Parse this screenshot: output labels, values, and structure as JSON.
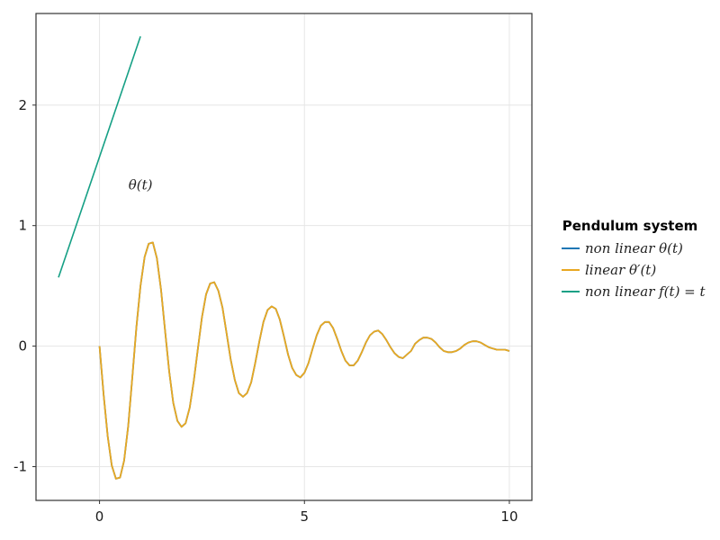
{
  "chart_data": {
    "type": "line",
    "xlim": [
      -1.55,
      10.55
    ],
    "ylim": [
      -1.28,
      2.76
    ],
    "xticks": [
      0,
      5,
      10
    ],
    "yticks": [
      -1,
      0,
      1,
      2
    ],
    "xtick_labels": [
      "0",
      "5",
      "10"
    ],
    "ytick_labels": [
      "-1",
      "0",
      "1",
      "2"
    ],
    "grid": true,
    "annotation": {
      "text": "θ(t)",
      "x": 1.0,
      "y": 1.3
    },
    "legend": {
      "title": "Pendulum system",
      "placement": "right"
    },
    "series": [
      {
        "name": "non linear θ(t)",
        "color": "#1f77b4",
        "x": [
          0,
          0.1,
          0.2,
          0.3,
          0.4,
          0.5,
          0.6,
          0.7,
          0.8,
          0.9,
          1.0,
          1.1,
          1.2,
          1.3,
          1.4,
          1.5,
          1.6,
          1.7,
          1.8,
          1.9,
          2.0,
          2.1,
          2.2,
          2.3,
          2.4,
          2.5,
          2.6,
          2.7,
          2.8,
          2.9,
          3.0,
          3.1,
          3.2,
          3.3,
          3.4,
          3.5,
          3.6,
          3.7,
          3.8,
          3.9,
          4.0,
          4.1,
          4.2,
          4.3,
          4.4,
          4.5,
          4.6,
          4.7,
          4.8,
          4.9,
          5.0,
          5.1,
          5.2,
          5.3,
          5.4,
          5.5,
          5.6,
          5.7,
          5.8,
          5.9,
          6.0,
          6.1,
          6.2,
          6.3,
          6.4,
          6.5,
          6.6,
          6.7,
          6.8,
          6.9,
          7.0,
          7.1,
          7.2,
          7.3,
          7.4,
          7.5,
          7.6,
          7.7,
          7.8,
          7.9,
          8.0,
          8.1,
          8.2,
          8.3,
          8.4,
          8.5,
          8.6,
          8.7,
          8.8,
          8.9,
          9.0,
          9.1,
          9.2,
          9.3,
          9.4,
          9.5,
          9.6,
          9.7,
          9.8,
          9.9,
          10.0
        ],
        "y": [
          0,
          -0.4,
          -0.75,
          -0.99,
          -1.1,
          -1.09,
          -0.95,
          -0.66,
          -0.26,
          0.16,
          0.5,
          0.74,
          0.85,
          0.86,
          0.73,
          0.47,
          0.13,
          -0.21,
          -0.47,
          -0.62,
          -0.67,
          -0.64,
          -0.51,
          -0.29,
          -0.02,
          0.24,
          0.43,
          0.52,
          0.53,
          0.46,
          0.32,
          0.11,
          -0.11,
          -0.28,
          -0.39,
          -0.42,
          -0.39,
          -0.3,
          -0.14,
          0.04,
          0.2,
          0.3,
          0.33,
          0.31,
          0.22,
          0.08,
          -0.07,
          -0.18,
          -0.24,
          -0.26,
          -0.22,
          -0.14,
          -0.02,
          0.09,
          0.17,
          0.2,
          0.2,
          0.15,
          0.06,
          -0.04,
          -0.12,
          -0.16,
          -0.16,
          -0.12,
          -0.05,
          0.03,
          0.09,
          0.12,
          0.13,
          0.1,
          0.05,
          -0.01,
          -0.06,
          -0.09,
          -0.1,
          -0.07,
          -0.04,
          0.02,
          0.05,
          0.07,
          0.07,
          0.06,
          0.03,
          -0.01,
          -0.04,
          -0.05,
          -0.05,
          -0.04,
          -0.02,
          0.01,
          0.03,
          0.04,
          0.04,
          0.03,
          0.01,
          -0.01,
          -0.02,
          -0.03,
          -0.03,
          -0.03,
          -0.04
        ]
      },
      {
        "name": "linear θ′(t)",
        "color": "#e8a822",
        "x": [
          0,
          0.1,
          0.2,
          0.3,
          0.4,
          0.5,
          0.6,
          0.7,
          0.8,
          0.9,
          1.0,
          1.1,
          1.2,
          1.3,
          1.4,
          1.5,
          1.6,
          1.7,
          1.8,
          1.9,
          2.0,
          2.1,
          2.2,
          2.3,
          2.4,
          2.5,
          2.6,
          2.7,
          2.8,
          2.9,
          3.0,
          3.1,
          3.2,
          3.3,
          3.4,
          3.5,
          3.6,
          3.7,
          3.8,
          3.9,
          4.0,
          4.1,
          4.2,
          4.3,
          4.4,
          4.5,
          4.6,
          4.7,
          4.8,
          4.9,
          5.0,
          5.1,
          5.2,
          5.3,
          5.4,
          5.5,
          5.6,
          5.7,
          5.8,
          5.9,
          6.0,
          6.1,
          6.2,
          6.3,
          6.4,
          6.5,
          6.6,
          6.7,
          6.8,
          6.9,
          7.0,
          7.1,
          7.2,
          7.3,
          7.4,
          7.5,
          7.6,
          7.7,
          7.8,
          7.9,
          8.0,
          8.1,
          8.2,
          8.3,
          8.4,
          8.5,
          8.6,
          8.7,
          8.8,
          8.9,
          9.0,
          9.1,
          9.2,
          9.3,
          9.4,
          9.5,
          9.6,
          9.7,
          9.8,
          9.9,
          10.0
        ],
        "y": [
          0,
          -0.4,
          -0.75,
          -0.99,
          -1.1,
          -1.09,
          -0.95,
          -0.66,
          -0.26,
          0.16,
          0.5,
          0.74,
          0.85,
          0.86,
          0.73,
          0.47,
          0.13,
          -0.21,
          -0.47,
          -0.62,
          -0.67,
          -0.64,
          -0.51,
          -0.29,
          -0.02,
          0.24,
          0.43,
          0.52,
          0.53,
          0.46,
          0.32,
          0.11,
          -0.11,
          -0.28,
          -0.39,
          -0.42,
          -0.39,
          -0.3,
          -0.14,
          0.04,
          0.2,
          0.3,
          0.33,
          0.31,
          0.22,
          0.08,
          -0.07,
          -0.18,
          -0.24,
          -0.26,
          -0.22,
          -0.14,
          -0.02,
          0.09,
          0.17,
          0.2,
          0.2,
          0.15,
          0.06,
          -0.04,
          -0.12,
          -0.16,
          -0.16,
          -0.12,
          -0.05,
          0.03,
          0.09,
          0.12,
          0.13,
          0.1,
          0.05,
          -0.01,
          -0.06,
          -0.09,
          -0.1,
          -0.07,
          -0.04,
          0.02,
          0.05,
          0.07,
          0.07,
          0.06,
          0.03,
          -0.01,
          -0.04,
          -0.05,
          -0.05,
          -0.04,
          -0.02,
          0.01,
          0.03,
          0.04,
          0.04,
          0.03,
          0.01,
          -0.01,
          -0.02,
          -0.03,
          -0.03,
          -0.03,
          -0.04
        ]
      },
      {
        "name": "non linear f(t) = t",
        "color": "#16a085",
        "x": [
          -1.0,
          1.0
        ],
        "y": [
          0.57,
          2.57
        ]
      }
    ]
  }
}
